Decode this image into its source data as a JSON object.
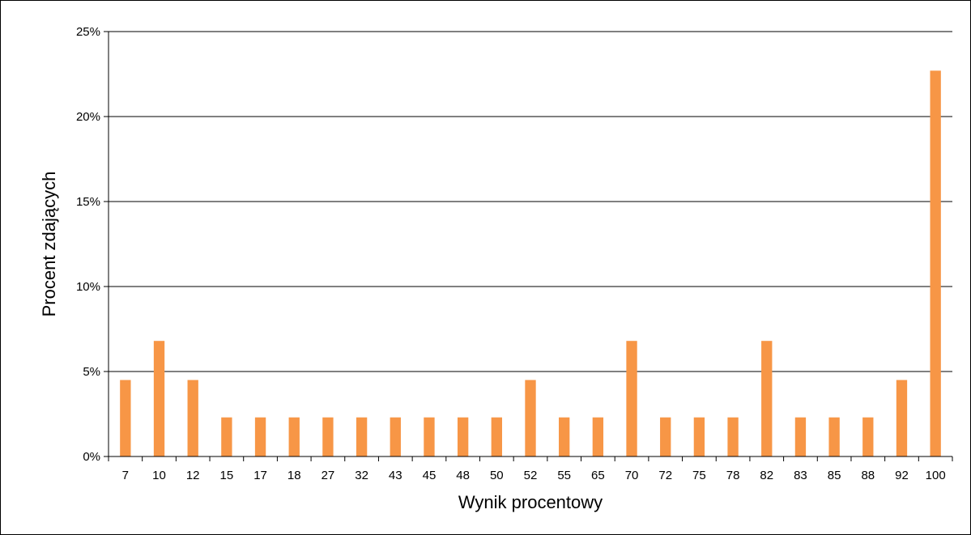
{
  "chart_data": {
    "type": "bar",
    "title": "",
    "xlabel": "Wynik procentowy",
    "ylabel": "Procent zdających",
    "ylim": [
      0,
      25
    ],
    "y_ticks": [
      "0%",
      "5%",
      "10%",
      "15%",
      "20%",
      "25%"
    ],
    "y_tick_values": [
      0,
      5,
      10,
      15,
      20,
      25
    ],
    "grid": true,
    "bar_color": "#F79646",
    "categories": [
      "7",
      "10",
      "12",
      "15",
      "17",
      "18",
      "27",
      "32",
      "43",
      "45",
      "48",
      "50",
      "52",
      "55",
      "65",
      "70",
      "72",
      "75",
      "78",
      "82",
      "83",
      "85",
      "88",
      "92",
      "100"
    ],
    "values": [
      4.5,
      6.8,
      4.5,
      2.3,
      2.3,
      2.3,
      2.3,
      2.3,
      2.3,
      2.3,
      2.3,
      2.3,
      4.5,
      2.3,
      2.3,
      6.8,
      2.3,
      2.3,
      2.3,
      6.8,
      2.3,
      2.3,
      2.3,
      4.5,
      22.7
    ]
  }
}
